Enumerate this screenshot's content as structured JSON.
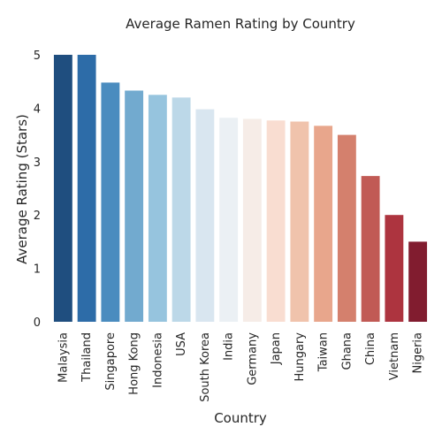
{
  "chart_data": {
    "type": "bar",
    "title": "Average Ramen Rating by Country",
    "xlabel": "Country",
    "ylabel": "Average Rating (Stars)",
    "ylim": [
      0,
      5.2
    ],
    "yticks": [
      0,
      1,
      2,
      3,
      4,
      5
    ],
    "grid": false,
    "categories": [
      "Malaysia",
      "Thailand",
      "Singapore",
      "Hong Kong",
      "Indonesia",
      "USA",
      "South Korea",
      "India",
      "Germany",
      "Japan",
      "Hungary",
      "Taiwan",
      "Ghana",
      "China",
      "Vietnam",
      "Nigeria"
    ],
    "values": [
      5.0,
      5.0,
      4.48,
      4.33,
      4.25,
      4.2,
      3.98,
      3.82,
      3.8,
      3.77,
      3.75,
      3.67,
      3.5,
      2.73,
      2.0,
      1.5
    ],
    "colors": [
      "#1f4e7f",
      "#2d6ca8",
      "#4a8cbf",
      "#72aacf",
      "#96c4de",
      "#bcd8e8",
      "#d9e6f0",
      "#ebf0f4",
      "#f6ece7",
      "#f9ddd1",
      "#f0c3ac",
      "#e8a68c",
      "#d4806d",
      "#c15a55",
      "#ad343f",
      "#811c2f"
    ]
  }
}
